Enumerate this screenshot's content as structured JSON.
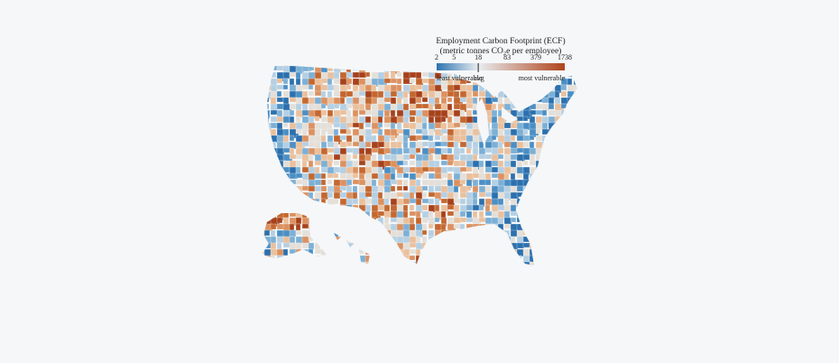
{
  "legend": {
    "title": "Employment Carbon Footprint (ECF)",
    "subtitle": "(metric tonnes CO₂e per employee)",
    "scale": "log",
    "ticks": [
      2,
      5,
      18,
      83,
      379,
      1738
    ],
    "low_label": "least vulnerable",
    "avg": {
      "value": 18,
      "label": "avg"
    },
    "high_label": "most vulnerable",
    "colors": [
      "#2c73b0",
      "#e9edf0",
      "#b0441c"
    ]
  }
}
